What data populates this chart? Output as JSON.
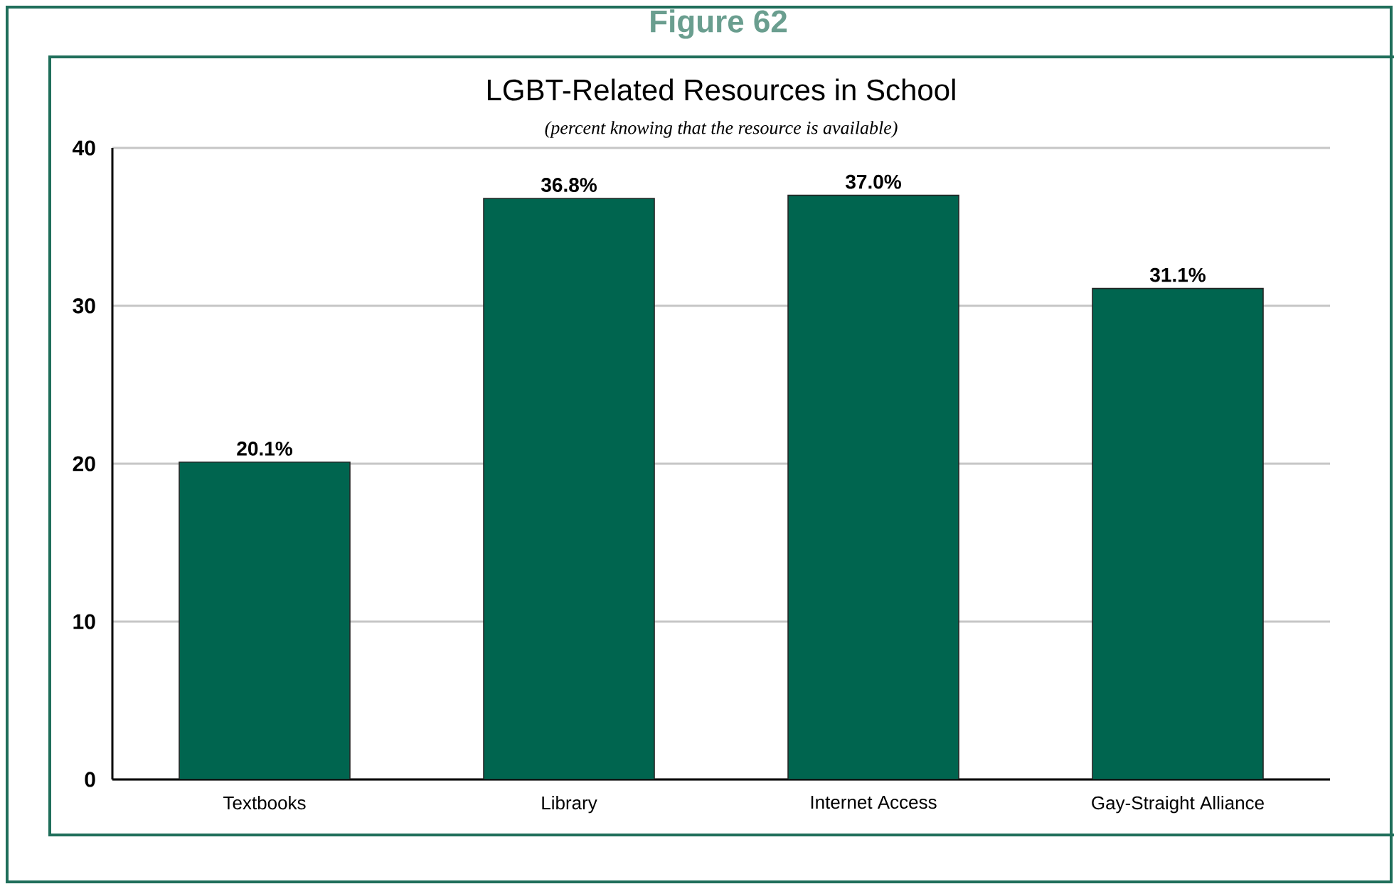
{
  "chart_data": {
    "type": "bar",
    "title": "LGBT-Related Resources in School",
    "subtitle": "(percent knowing that the resource is available)",
    "annotations": [
      "Figure 62"
    ],
    "categories": [
      "Textbooks",
      "Library",
      "Internet Access",
      "Gay-Straight Alliance"
    ],
    "values": [
      20.1,
      36.8,
      37.0,
      31.1
    ],
    "value_labels": [
      "20.1%",
      "36.8%",
      "37.0%",
      "31.1%"
    ],
    "color": "#00654f",
    "ylim": [
      0,
      40
    ],
    "yticks": [
      0,
      10,
      20,
      30,
      40
    ],
    "grid": "y"
  }
}
